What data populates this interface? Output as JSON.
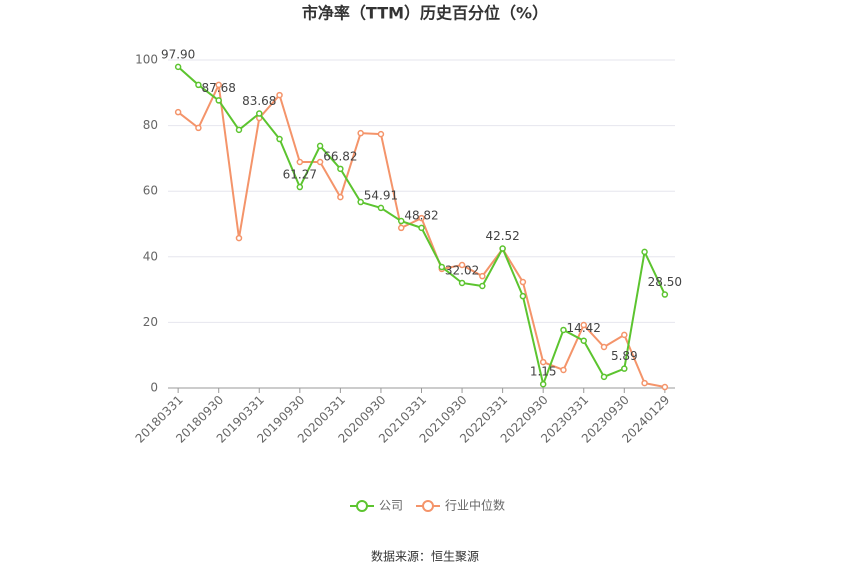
{
  "chart_data": {
    "type": "line",
    "title": "市净率（TTM）历史百分位（%）",
    "source": "数据来源：恒生聚源",
    "categories": [
      "20180331",
      null,
      "20180930",
      null,
      "20190331",
      null,
      "20190930",
      null,
      "20200331",
      null,
      "20200930",
      null,
      "20210331",
      null,
      "20210930",
      null,
      "20220331",
      null,
      "20220930",
      null,
      "20230331",
      null,
      "20230930",
      null,
      "20240129"
    ],
    "series": [
      {
        "name": "公司",
        "color": "#5cc42f",
        "values": [
          97.9,
          92.4,
          87.68,
          78.7,
          83.68,
          75.9,
          61.27,
          73.8,
          66.82,
          56.7,
          54.91,
          50.9,
          48.82,
          36.9,
          32.02,
          31.1,
          42.52,
          28.0,
          1.15,
          17.7,
          14.42,
          3.4,
          5.89,
          41.5,
          28.5
        ],
        "value_labels": [
          "97.90",
          null,
          "87.68",
          null,
          "83.68",
          null,
          "61.27",
          null,
          "66.82",
          null,
          "54.91",
          null,
          "48.82",
          null,
          "32.02",
          null,
          "42.52",
          null,
          "1.15",
          null,
          "14.42",
          null,
          "5.89",
          null,
          "28.50"
        ]
      },
      {
        "name": "行业中位数",
        "color": "#f4946a",
        "values": [
          84.1,
          79.3,
          92.4,
          45.7,
          82.3,
          89.3,
          68.9,
          68.9,
          58.2,
          77.7,
          77.4,
          48.8,
          51.8,
          36.3,
          37.5,
          34.1,
          42.4,
          32.3,
          7.9,
          5.5,
          19.2,
          12.5,
          16.2,
          1.5,
          0.3
        ]
      }
    ],
    "ylim": [
      0,
      100
    ],
    "yticks": [
      0,
      20,
      40,
      60,
      80,
      100
    ],
    "grid": true
  }
}
